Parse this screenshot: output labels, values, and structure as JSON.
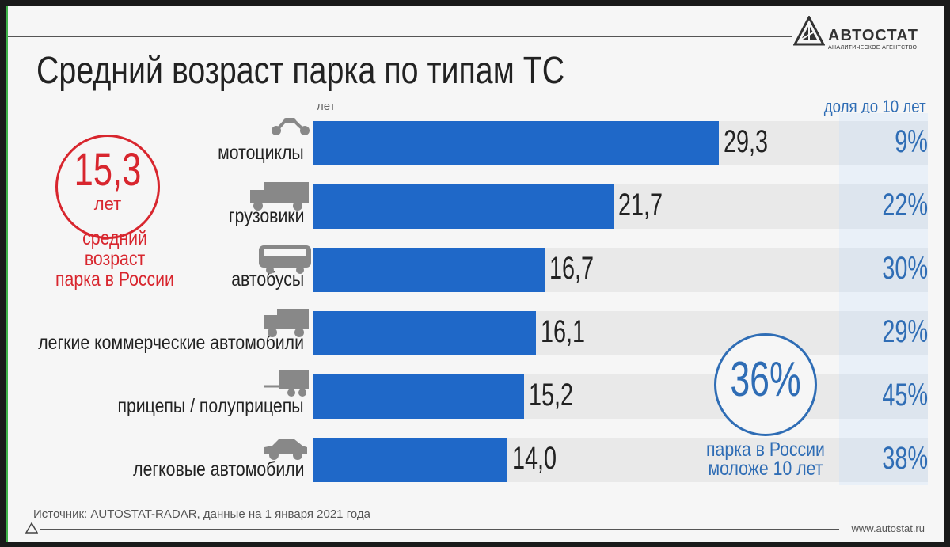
{
  "header": {
    "title": "Средний возраст парка по типам ТС",
    "logo_text": "АВТОСТАТ",
    "logo_sub": "АНАЛИТИЧЕСКОЕ АГЕНТСТВО"
  },
  "summary_left": {
    "value": "15,3",
    "unit": "лет",
    "caption_1": "средний возраст",
    "caption_2": "парка в России"
  },
  "summary_right": {
    "value": "36%",
    "caption_1": "парка в России",
    "caption_2": "моложе 10 лет"
  },
  "footer": {
    "source": "Источник: AUTOSTAT-RADAR, данные на 1 января 2021 года",
    "url": "www.autostat.ru"
  },
  "colors": {
    "bar": "#1f68c8",
    "accent_red": "#d8262e",
    "accent_blue": "#2f6db5"
  },
  "chart_data": {
    "type": "bar",
    "orientation": "horizontal",
    "unit_label": "лет",
    "share_header": "доля до 10 лет",
    "categories": [
      "мотоциклы",
      "грузовики",
      "автобусы",
      "легкие коммерческие автомобили",
      "прицепы / полуприцепы",
      "легковые автомобили"
    ],
    "values": [
      29.3,
      21.7,
      16.7,
      16.1,
      15.2,
      14.0
    ],
    "value_labels": [
      "29,3",
      "21,7",
      "16,7",
      "16,1",
      "15,2",
      "14,0"
    ],
    "share_labels": [
      "9%",
      "22%",
      "30%",
      "29%",
      "45%",
      "38%"
    ],
    "icons": [
      "motorcycle-icon",
      "truck-icon",
      "bus-icon",
      "van-icon",
      "trailer-icon",
      "car-icon"
    ],
    "xlim": [
      0,
      38
    ]
  }
}
